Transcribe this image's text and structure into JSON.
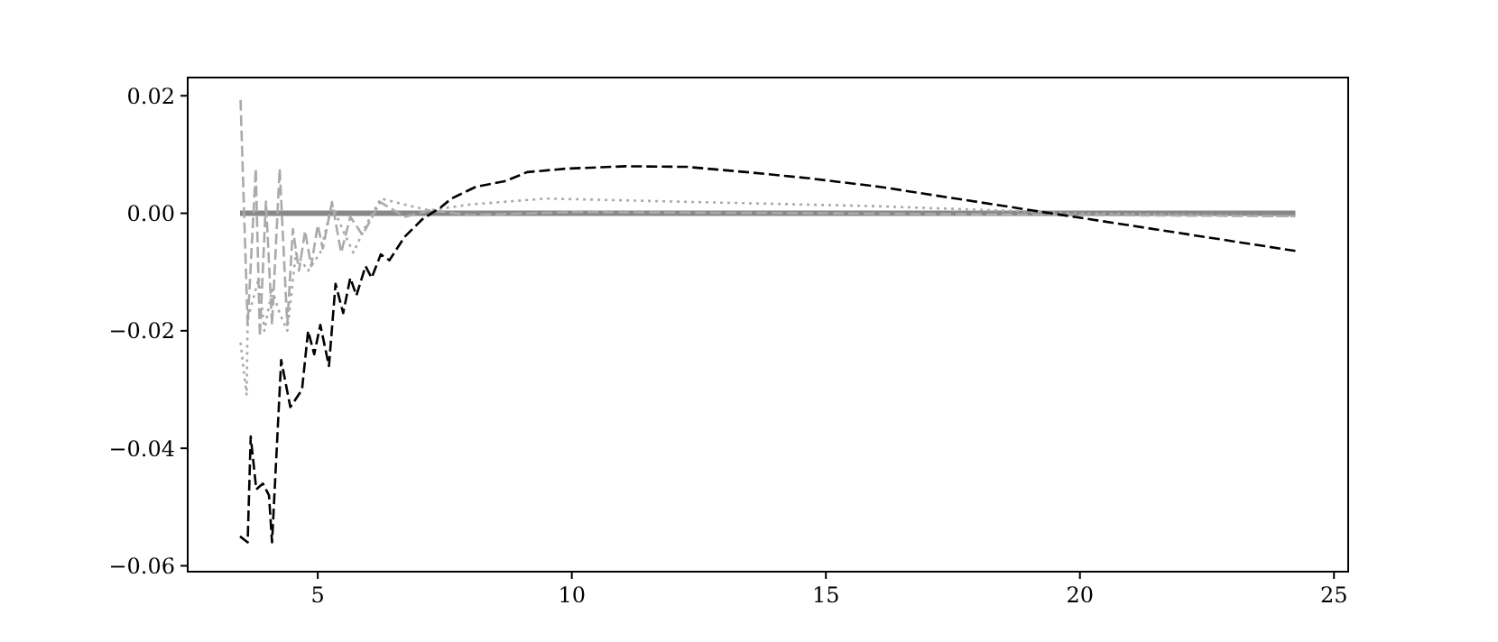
{
  "chart_data": {
    "type": "line",
    "xlim": [
      2.44,
      25.28
    ],
    "ylim": [
      -0.061,
      0.0231
    ],
    "xticks": [
      5,
      10,
      15,
      20,
      25
    ],
    "yticks": [
      {
        "value": -0.06,
        "label": "−0.06"
      },
      {
        "value": -0.04,
        "label": "−0.04"
      },
      {
        "value": -0.02,
        "label": "−0.02"
      },
      {
        "value": 0,
        "label": "0.00"
      },
      {
        "value": 0.02,
        "label": "0.02"
      }
    ],
    "grid": false,
    "marker": "none",
    "series": [
      {
        "color": "#888888",
        "line_style": "solid",
        "x": [
          3.47,
          24.24
        ],
        "values": [
          0,
          0
        ]
      },
      {
        "color": "#aaaaaa",
        "line_style": "dashed",
        "x": [
          3.48,
          3.62,
          3.78,
          3.86,
          3.98,
          4.1,
          4.25,
          4.4,
          4.51,
          4.63,
          4.75,
          4.87,
          5.0,
          5.1,
          5.28,
          5.46,
          5.64,
          5.88,
          6.23,
          6.71,
          7.2,
          8.0,
          10,
          15,
          20,
          24.24
        ],
        "values": [
          0.0193,
          -0.019,
          0.0076,
          -0.021,
          0.002,
          -0.019,
          0.0076,
          -0.019,
          -0.0027,
          -0.0098,
          -0.003,
          -0.009,
          -0.002,
          -0.006,
          0.0019,
          -0.0067,
          -0.0006,
          -0.0037,
          0.0019,
          -0.0006,
          0.0005,
          -0.0003,
          0.0002,
          0,
          -0.0003,
          -0.0005
        ]
      },
      {
        "color": "#aaaaaa",
        "line_style": "dotted",
        "x": [
          3.48,
          3.6,
          3.62,
          3.84,
          3.95,
          4.1,
          4.25,
          4.4,
          4.57,
          4.81,
          5.05,
          5.28,
          5.5,
          5.7,
          5.95,
          6.24,
          6.7,
          7.2,
          8.0,
          9.5,
          12,
          16,
          20,
          24.24
        ],
        "values": [
          -0.022,
          -0.031,
          -0.018,
          -0.011,
          -0.02,
          -0.013,
          -0.017,
          -0.02,
          -0.0067,
          -0.0098,
          -0.0067,
          0.0015,
          -0.003,
          -0.0067,
          -0.002,
          0.0025,
          0.0015,
          0.0005,
          0.0015,
          0.0025,
          0.002,
          0.0012,
          0,
          -0.0005
        ]
      },
      {
        "color": "#000000",
        "line_style": "dashed",
        "x": [
          3.47,
          3.62,
          3.68,
          3.79,
          3.92,
          4.04,
          4.1,
          4.28,
          4.46,
          4.69,
          4.81,
          4.93,
          5.05,
          5.22,
          5.35,
          5.5,
          5.64,
          5.76,
          5.94,
          6.06,
          6.24,
          6.41,
          6.71,
          7.06,
          7.42,
          7.63,
          8.11,
          8.7,
          9.12,
          9.89,
          11.07,
          12.26,
          13.44,
          14.63,
          16.06,
          19.73,
          24.24
        ],
        "values": [
          -0.055,
          -0.056,
          -0.038,
          -0.047,
          -0.046,
          -0.048,
          -0.056,
          -0.025,
          -0.033,
          -0.03,
          -0.02,
          -0.024,
          -0.019,
          -0.026,
          -0.012,
          -0.017,
          -0.011,
          -0.014,
          -0.009,
          -0.011,
          -0.007,
          -0.008,
          -0.004,
          -0.001,
          0.001,
          0.0025,
          0.0045,
          0.0055,
          0.007,
          0.0076,
          0.008,
          0.0079,
          0.007,
          0.006,
          0.0045,
          -0.0004,
          -0.0064
        ]
      }
    ]
  }
}
